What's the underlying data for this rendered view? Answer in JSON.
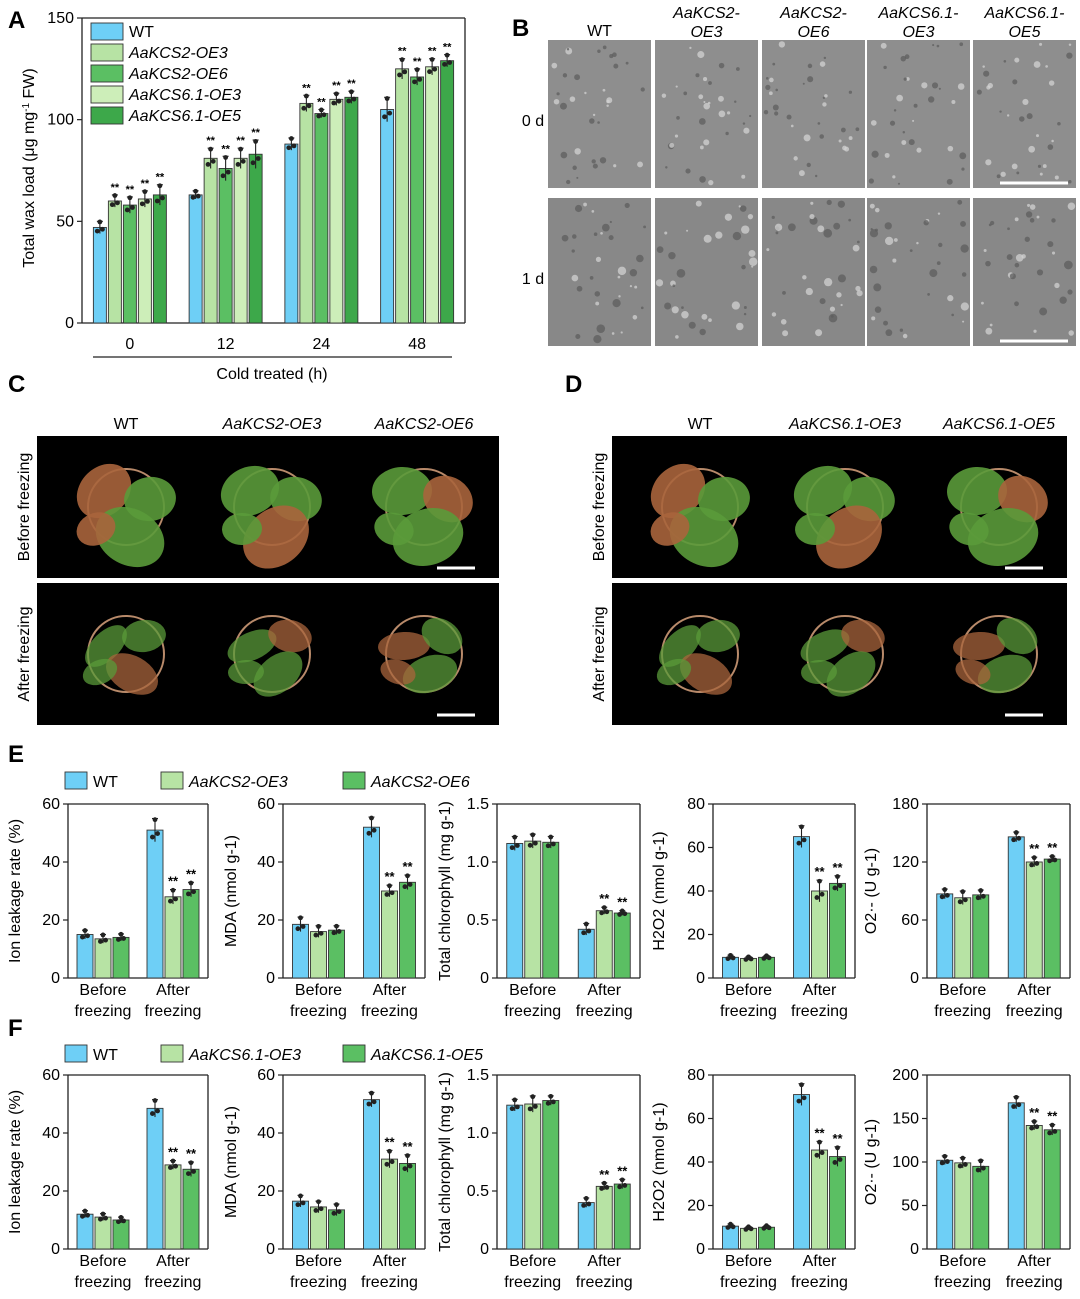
{
  "colors": {
    "wt": "#6ecff6",
    "oe_a": "#b7e3a4",
    "oe_b": "#5bbf63",
    "oe_c": "#cdeeb9",
    "oe_d": "#3da84a",
    "sem_dark": "#4a4a4a",
    "sem_light": "#9a9a9a",
    "photo_bg": "#000000",
    "leaf_green": "#5a9a3a",
    "leaf_red": "#a8643c",
    "pot": "#b88a6a"
  },
  "panels": {
    "A": "A",
    "B": "B",
    "C": "C",
    "D": "D",
    "E": "E",
    "F": "F"
  },
  "panel_a": {
    "ylabel_main": "Total wax load (μg mg",
    "ylabel_sup": "-1",
    "ylabel_tail": " FW)",
    "yticks": [
      "0",
      "50",
      "100",
      "150"
    ],
    "xticks": [
      "0",
      "12",
      "24",
      "48"
    ],
    "xlabel": "Cold treated (h)",
    "legend": [
      "WT",
      "AaKCS2-OE3",
      "AaKCS2-OE6",
      "AaKCS6.1-OE3",
      "AaKCS6.1-OE5"
    ],
    "sig": "**"
  },
  "panel_b": {
    "columns": [
      "WT",
      "AaKCS2-\nOE3",
      "AaKCS2-\nOE6",
      "AaKCS6.1-\nOE3",
      "AaKCS6.1-\nOE5"
    ],
    "col_line1": [
      "WT",
      "AaKCS2-",
      "AaKCS2-",
      "AaKCS6.1-",
      "AaKCS6.1-"
    ],
    "col_line2": [
      "",
      "OE3",
      "OE6",
      "OE3",
      "OE5"
    ],
    "rows": [
      "0 d",
      "1 d"
    ]
  },
  "panel_c": {
    "columns": [
      "WT",
      "AaKCS2-OE3",
      "AaKCS2-OE6"
    ],
    "rows": [
      "Before freezing",
      "After freezing"
    ]
  },
  "panel_d": {
    "columns": [
      "WT",
      "AaKCS6.1-OE3",
      "AaKCS6.1-OE5"
    ],
    "rows": [
      "Before freezing",
      "After freezing"
    ]
  },
  "panel_e": {
    "legend": [
      "WT",
      "AaKCS2-OE3",
      "AaKCS2-OE6"
    ],
    "xcat_line1": [
      "Before",
      "After"
    ],
    "xcat_line2": [
      "freezing",
      "freezing"
    ],
    "sig": "**"
  },
  "panel_f": {
    "legend": [
      "WT",
      "AaKCS6.1-OE3",
      "AaKCS6.1-OE5"
    ],
    "xcat_line1": [
      "Before",
      "After"
    ],
    "xcat_line2": [
      "freezing",
      "freezing"
    ],
    "sig": "**"
  },
  "chart_data": [
    {
      "panel": "A",
      "type": "bar",
      "categories": [
        "0",
        "12",
        "24",
        "48"
      ],
      "xlabel": "Cold treated (h)",
      "ylabel": "Total wax load (μg mg-1 FW)",
      "ylim": [
        0,
        150
      ],
      "series": [
        {
          "name": "WT",
          "values": [
            47,
            63,
            88,
            105
          ],
          "err": [
            3,
            2,
            3,
            6
          ],
          "sig": [
            false,
            false,
            false,
            false
          ]
        },
        {
          "name": "AaKCS2-OE3",
          "values": [
            60,
            81,
            108,
            125
          ],
          "err": [
            3,
            5,
            4,
            5
          ],
          "sig": [
            true,
            true,
            true,
            true
          ]
        },
        {
          "name": "AaKCS2-OE6",
          "values": [
            58,
            76,
            103,
            121
          ],
          "err": [
            4,
            6,
            2,
            4
          ],
          "sig": [
            true,
            true,
            true,
            true
          ]
        },
        {
          "name": "AaKCS6.1-OE3",
          "values": [
            61,
            81,
            110,
            126
          ],
          "err": [
            4,
            5,
            3,
            4
          ],
          "sig": [
            true,
            true,
            true,
            true
          ]
        },
        {
          "name": "AaKCS6.1-OE5",
          "values": [
            63,
            83,
            111,
            129
          ],
          "err": [
            5,
            7,
            3,
            3
          ],
          "sig": [
            true,
            true,
            true,
            true
          ]
        }
      ]
    },
    {
      "panel": "E",
      "type": "bar",
      "ylabel": "Ion leakage rate (%)",
      "ylim": [
        0,
        60
      ],
      "yticks": [
        0,
        20,
        40,
        60
      ],
      "categories": [
        "Before freezing",
        "After freezing"
      ],
      "series": [
        {
          "name": "WT",
          "values": [
            15,
            51
          ],
          "err": [
            1.5,
            4
          ],
          "sig": [
            false,
            false
          ]
        },
        {
          "name": "AaKCS2-OE3",
          "values": [
            13.5,
            28
          ],
          "err": [
            1.5,
            2.5
          ],
          "sig": [
            false,
            true
          ]
        },
        {
          "name": "AaKCS2-OE6",
          "values": [
            14,
            30.5
          ],
          "err": [
            1.2,
            2.5
          ],
          "sig": [
            false,
            true
          ]
        }
      ]
    },
    {
      "panel": "E",
      "type": "bar",
      "ylabel": "MDA (nmol g-1)",
      "ylim": [
        0,
        60
      ],
      "yticks": [
        0,
        20,
        40,
        60
      ],
      "categories": [
        "Before freezing",
        "After freezing"
      ],
      "series": [
        {
          "name": "WT",
          "values": [
            18.5,
            52
          ],
          "err": [
            2.5,
            3.5
          ],
          "sig": [
            false,
            false
          ]
        },
        {
          "name": "AaKCS2-OE3",
          "values": [
            16,
            30
          ],
          "err": [
            2,
            2
          ],
          "sig": [
            false,
            true
          ]
        },
        {
          "name": "AaKCS2-OE6",
          "values": [
            16.5,
            33
          ],
          "err": [
            1.5,
            2.5
          ],
          "sig": [
            false,
            true
          ]
        }
      ]
    },
    {
      "panel": "E",
      "type": "bar",
      "ylabel": "Total chlorophyll (mg g-1)",
      "ylim": [
        0,
        1.5
      ],
      "yticks": [
        0,
        0.5,
        1.0,
        1.5
      ],
      "categories": [
        "Before freezing",
        "After freezing"
      ],
      "series": [
        {
          "name": "WT",
          "values": [
            1.16,
            0.42
          ],
          "err": [
            0.06,
            0.05
          ],
          "sig": [
            false,
            false
          ]
        },
        {
          "name": "AaKCS2-OE3",
          "values": [
            1.18,
            0.58
          ],
          "err": [
            0.06,
            0.03
          ],
          "sig": [
            false,
            true
          ]
        },
        {
          "name": "AaKCS2-OE6",
          "values": [
            1.17,
            0.56
          ],
          "err": [
            0.05,
            0.02
          ],
          "sig": [
            false,
            true
          ]
        }
      ]
    },
    {
      "panel": "E",
      "type": "bar",
      "ylabel": "H2O2 (nmol g-1)",
      "ylim": [
        0,
        80
      ],
      "yticks": [
        0,
        20,
        40,
        60,
        80
      ],
      "categories": [
        "Before freezing",
        "After freezing"
      ],
      "series": [
        {
          "name": "WT",
          "values": [
            9.5,
            65
          ],
          "err": [
            1,
            5
          ],
          "sig": [
            false,
            false
          ]
        },
        {
          "name": "AaKCS2-OE3",
          "values": [
            9,
            40
          ],
          "err": [
            0.8,
            5
          ],
          "sig": [
            false,
            true
          ]
        },
        {
          "name": "AaKCS2-OE6",
          "values": [
            9.5,
            43.5
          ],
          "err": [
            0.8,
            3.5
          ],
          "sig": [
            false,
            true
          ]
        }
      ]
    },
    {
      "panel": "E",
      "type": "bar",
      "ylabel": "O2·- (U g-1)",
      "ylim": [
        0,
        180
      ],
      "yticks": [
        0,
        60,
        120,
        180
      ],
      "categories": [
        "Before freezing",
        "After freezing"
      ],
      "series": [
        {
          "name": "WT",
          "values": [
            87,
            146
          ],
          "err": [
            5,
            5
          ],
          "sig": [
            false,
            false
          ]
        },
        {
          "name": "AaKCS2-OE3",
          "values": [
            83,
            120
          ],
          "err": [
            7,
            5
          ],
          "sig": [
            false,
            true
          ]
        },
        {
          "name": "AaKCS2-OE6",
          "values": [
            86,
            123
          ],
          "err": [
            5,
            3
          ],
          "sig": [
            false,
            true
          ]
        }
      ]
    },
    {
      "panel": "F",
      "type": "bar",
      "ylabel": "Ion leakage rate (%)",
      "ylim": [
        0,
        60
      ],
      "yticks": [
        0,
        20,
        40,
        60
      ],
      "categories": [
        "Before freezing",
        "After freezing"
      ],
      "series": [
        {
          "name": "WT",
          "values": [
            12,
            48.5
          ],
          "err": [
            1.2,
            3
          ],
          "sig": [
            false,
            false
          ]
        },
        {
          "name": "AaKCS6.1-OE3",
          "values": [
            11,
            29
          ],
          "err": [
            1.2,
            1.5
          ],
          "sig": [
            false,
            true
          ]
        },
        {
          "name": "AaKCS6.1-OE5",
          "values": [
            10,
            27.5
          ],
          "err": [
            1,
            2.5
          ],
          "sig": [
            false,
            true
          ]
        }
      ]
    },
    {
      "panel": "F",
      "type": "bar",
      "ylabel": "MDA (nmol g-1)",
      "ylim": [
        0,
        60
      ],
      "yticks": [
        0,
        20,
        40,
        60
      ],
      "categories": [
        "Before freezing",
        "After freezing"
      ],
      "series": [
        {
          "name": "WT",
          "values": [
            16.5,
            51.5
          ],
          "err": [
            2,
            2.5
          ],
          "sig": [
            false,
            false
          ]
        },
        {
          "name": "AaKCS6.1-OE3",
          "values": [
            14.5,
            31
          ],
          "err": [
            2,
            3
          ],
          "sig": [
            false,
            true
          ]
        },
        {
          "name": "AaKCS6.1-OE5",
          "values": [
            13.5,
            29.5
          ],
          "err": [
            2,
            3
          ],
          "sig": [
            false,
            true
          ]
        }
      ]
    },
    {
      "panel": "F",
      "type": "bar",
      "ylabel": "Total chlorophyll (mg g-1)",
      "ylim": [
        0,
        1.5
      ],
      "yticks": [
        0,
        0.5,
        1.0,
        1.5
      ],
      "categories": [
        "Before freezing",
        "After freezing"
      ],
      "series": [
        {
          "name": "WT",
          "values": [
            1.24,
            0.4
          ],
          "err": [
            0.05,
            0.04
          ],
          "sig": [
            false,
            false
          ]
        },
        {
          "name": "AaKCS6.1-OE3",
          "values": [
            1.25,
            0.54
          ],
          "err": [
            0.07,
            0.03
          ],
          "sig": [
            false,
            true
          ]
        },
        {
          "name": "AaKCS6.1-OE5",
          "values": [
            1.28,
            0.56
          ],
          "err": [
            0.04,
            0.04
          ],
          "sig": [
            false,
            true
          ]
        }
      ]
    },
    {
      "panel": "F",
      "type": "bar",
      "ylabel": "H2O2 (nmol g-1)",
      "ylim": [
        0,
        80
      ],
      "yticks": [
        0,
        20,
        40,
        60,
        80
      ],
      "categories": [
        "Before freezing",
        "After freezing"
      ],
      "series": [
        {
          "name": "WT",
          "values": [
            10.5,
            71
          ],
          "err": [
            1,
            5
          ],
          "sig": [
            false,
            false
          ]
        },
        {
          "name": "AaKCS6.1-OE3",
          "values": [
            9.5,
            45.5
          ],
          "err": [
            0.8,
            4
          ],
          "sig": [
            false,
            true
          ]
        },
        {
          "name": "AaKCS6.1-OE5",
          "values": [
            10,
            42.5
          ],
          "err": [
            0.8,
            4.5
          ],
          "sig": [
            false,
            true
          ]
        }
      ]
    },
    {
      "panel": "F",
      "type": "bar",
      "ylabel": "O2·- (U g-1)",
      "ylim": [
        0,
        200
      ],
      "yticks": [
        0,
        50,
        100,
        150,
        200
      ],
      "categories": [
        "Before freezing",
        "After freezing"
      ],
      "series": [
        {
          "name": "WT",
          "values": [
            102,
            168
          ],
          "err": [
            5,
            7
          ],
          "sig": [
            false,
            false
          ]
        },
        {
          "name": "AaKCS6.1-OE3",
          "values": [
            99,
            142
          ],
          "err": [
            6,
            5
          ],
          "sig": [
            false,
            true
          ]
        },
        {
          "name": "AaKCS6.1-OE5",
          "values": [
            95,
            137
          ],
          "err": [
            7,
            6
          ],
          "sig": [
            false,
            true
          ]
        }
      ]
    }
  ]
}
